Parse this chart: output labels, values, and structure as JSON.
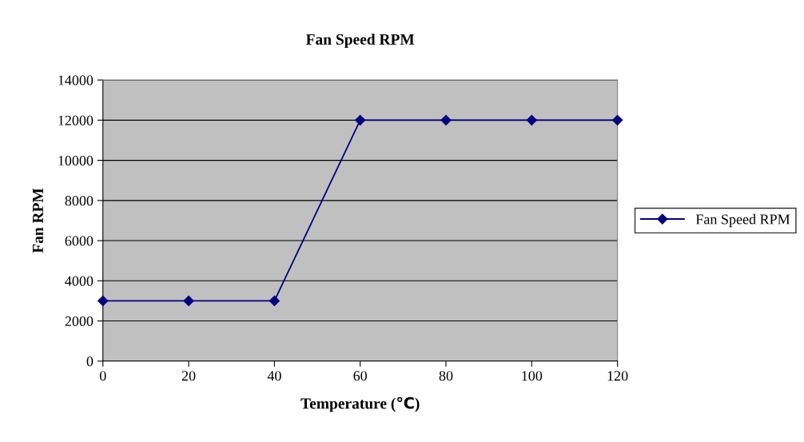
{
  "chart_data": {
    "type": "line",
    "title": "Fan Speed RPM",
    "xlabel": "Temperature (℃)",
    "ylabel": "Fan RPM",
    "x": [
      0,
      20,
      40,
      60,
      80,
      100,
      120
    ],
    "series": [
      {
        "name": "Fan Speed RPM",
        "color": "#000080",
        "values": [
          3000,
          3000,
          3000,
          12000,
          12000,
          12000,
          12000
        ]
      }
    ],
    "xlim": [
      0,
      120
    ],
    "xticks": [
      0,
      20,
      40,
      60,
      80,
      100,
      120
    ],
    "ylim": [
      0,
      14000
    ],
    "yticks": [
      0,
      2000,
      4000,
      6000,
      8000,
      10000,
      12000,
      14000
    ],
    "grid": "y",
    "legend": "right",
    "marker": "diamond",
    "line_style": "solid"
  }
}
